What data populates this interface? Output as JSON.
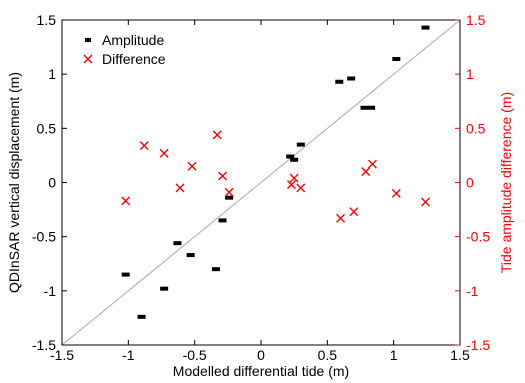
{
  "chart_data": {
    "type": "scatter",
    "xlabel": "Modelled differential tide (m)",
    "ylabel_left": "QDInSAR vertical displacement (m)",
    "ylabel_right": "Tide amplitude difference (m)",
    "xlim": [
      -1.5,
      1.5
    ],
    "ylim_left": [
      -1.5,
      1.5
    ],
    "ylim_right": [
      -1.5,
      1.5
    ],
    "x_ticks": [
      "-1.5",
      "-1",
      "-0.5",
      "0",
      "0.5",
      "1",
      "1.5"
    ],
    "y_ticks_left": [
      "-1.5",
      "-1",
      "-0.5",
      "0",
      "0.5",
      "1",
      "1.5"
    ],
    "y_ticks_right": [
      "-1.5",
      "-1",
      "-0.5",
      "0",
      "0.5",
      "1",
      "1.5"
    ],
    "legend": {
      "position": "top-left",
      "entries": [
        "Amplitude",
        "Difference"
      ]
    },
    "reference_line": {
      "slope": 1,
      "intercept": 0,
      "color": "#aaaaaa"
    },
    "colors": {
      "amplitude": "#000000",
      "difference": "#ff0000",
      "right_axis": "#ff0000",
      "frame": "#000000"
    },
    "series": [
      {
        "name": "Amplitude",
        "marker": "dash",
        "axis": "left",
        "points": [
          [
            -1.02,
            -0.85
          ],
          [
            -0.9,
            -1.24
          ],
          [
            -0.73,
            -0.98
          ],
          [
            -0.63,
            -0.56
          ],
          [
            -0.53,
            -0.67
          ],
          [
            -0.34,
            -0.8
          ],
          [
            -0.29,
            -0.35
          ],
          [
            -0.24,
            -0.14
          ],
          [
            0.22,
            0.24
          ],
          [
            0.25,
            0.21
          ],
          [
            0.3,
            0.35
          ],
          [
            0.59,
            0.93
          ],
          [
            0.68,
            0.96
          ],
          [
            0.78,
            0.69
          ],
          [
            0.83,
            0.69
          ],
          [
            1.02,
            1.14
          ],
          [
            1.24,
            1.43
          ]
        ]
      },
      {
        "name": "Difference",
        "marker": "x",
        "axis": "right",
        "points": [
          [
            -1.02,
            -0.17
          ],
          [
            -0.88,
            0.34
          ],
          [
            -0.73,
            0.27
          ],
          [
            -0.61,
            -0.05
          ],
          [
            -0.52,
            0.15
          ],
          [
            -0.33,
            0.44
          ],
          [
            -0.29,
            0.06
          ],
          [
            -0.24,
            -0.09
          ],
          [
            0.23,
            -0.02
          ],
          [
            0.25,
            0.04
          ],
          [
            0.3,
            -0.05
          ],
          [
            0.6,
            -0.33
          ],
          [
            0.7,
            -0.27
          ],
          [
            0.79,
            0.1
          ],
          [
            0.84,
            0.17
          ],
          [
            1.02,
            -0.1
          ],
          [
            1.24,
            -0.18
          ]
        ]
      }
    ]
  }
}
